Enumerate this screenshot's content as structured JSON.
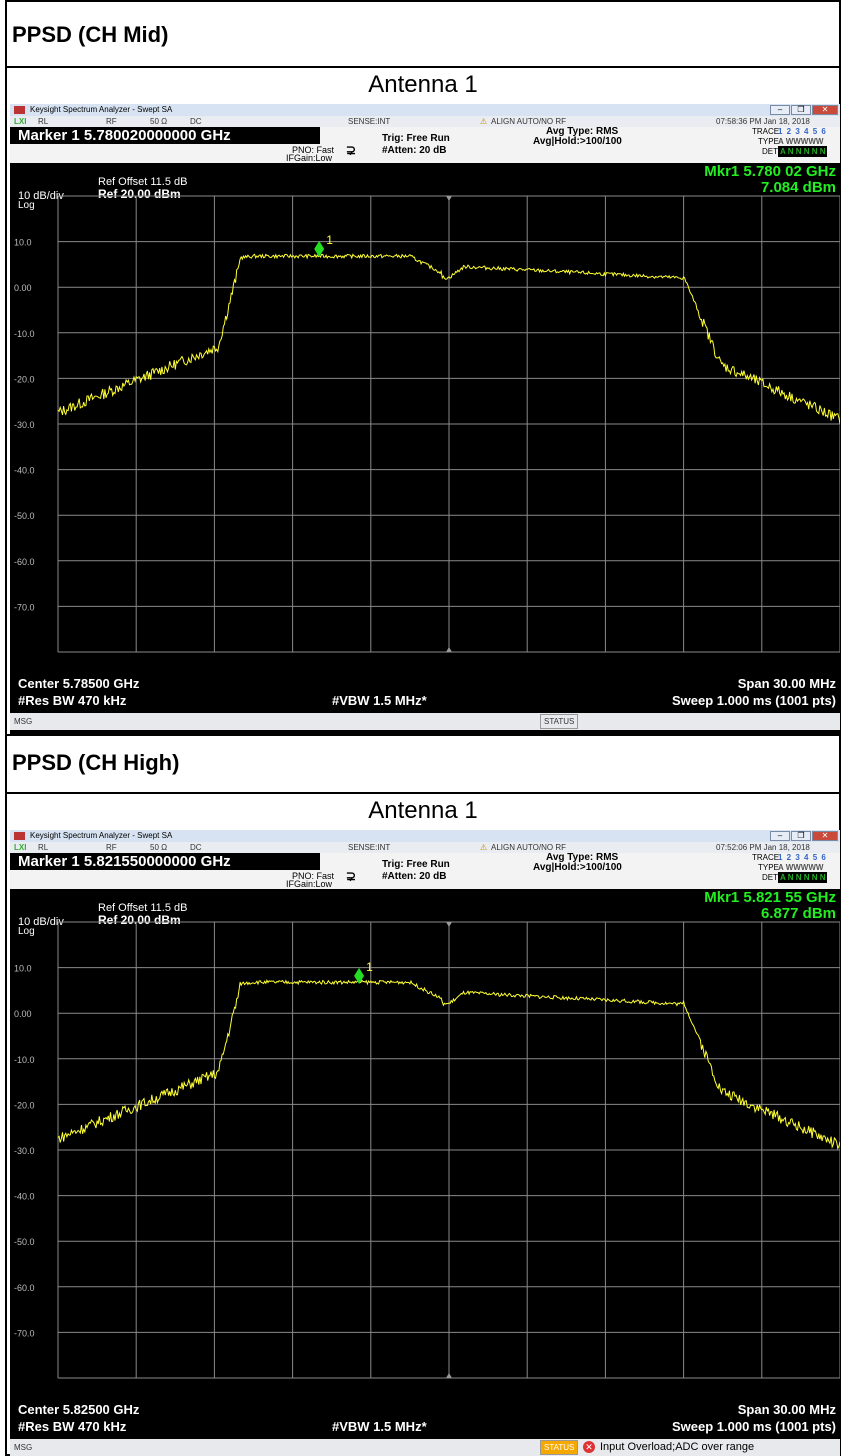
{
  "sections": [
    {
      "title": "PPSD (CH Mid)",
      "antenna": "Antenna 1",
      "analyzer": {
        "window_title": "Keysight Spectrum Analyzer - Swept SA",
        "status": {
          "rl": "RL",
          "rf": "RF",
          "impedance": "50 Ω",
          "dc": "DC",
          "sense": "SENSE:INT",
          "align": "ALIGN AUTO/NO RF",
          "datetime": "07:58:36 PM Jan 18, 2018"
        },
        "marker_line": "Marker 1 5.780020000000 GHz",
        "pno": "PNO: Fast",
        "ifgain": "IFGain:Low",
        "trig": "Trig: Free Run",
        "atten": "#Atten: 20 dB",
        "avg_type": "Avg Type: RMS",
        "avg_hold": "Avg|Hold:>100/100",
        "trace_label": "TRACE",
        "trace_nums": "1 2 3 4 5 6",
        "type_label": "TYPE",
        "type_val": "A WWWWW",
        "det_label": "DET",
        "det_val": "A N N N N N",
        "ref_offset": "Ref Offset 11.5 dB",
        "scale": "10 dB/div",
        "ref_level": "Ref 20.00 dBm",
        "log": "Log",
        "mkr_freq": "Mkr1 5.780 02 GHz",
        "mkr_level": "7.084 dBm",
        "marker_num": "1",
        "center": "Center 5.78500 GHz",
        "span": "Span 30.00 MHz",
        "res_bw": "#Res BW 470 kHz",
        "vbw": "#VBW 1.5 MHz*",
        "sweep": "Sweep  1.000 ms (1001 pts)",
        "msg": "MSG",
        "status_label": "STATUS",
        "status_msg": ""
      }
    },
    {
      "title": "PPSD (CH High)",
      "antenna": "Antenna 1",
      "analyzer": {
        "window_title": "Keysight Spectrum Analyzer - Swept SA",
        "status": {
          "rl": "RL",
          "rf": "RF",
          "impedance": "50 Ω",
          "dc": "DC",
          "sense": "SENSE:INT",
          "align": "ALIGN AUTO/NO RF",
          "datetime": "07:52:06 PM Jan 18, 2018"
        },
        "marker_line": "Marker 1 5.821550000000 GHz",
        "pno": "PNO: Fast",
        "ifgain": "IFGain:Low",
        "trig": "Trig: Free Run",
        "atten": "#Atten: 20 dB",
        "avg_type": "Avg Type: RMS",
        "avg_hold": "Avg|Hold:>100/100",
        "trace_label": "TRACE",
        "trace_nums": "1 2 3 4 5 6",
        "type_label": "TYPE",
        "type_val": "A WWWWW",
        "det_label": "DET",
        "det_val": "A N N N N N",
        "ref_offset": "Ref Offset 11.5 dB",
        "scale": "10 dB/div",
        "ref_level": "Ref 20.00 dBm",
        "log": "Log",
        "mkr_freq": "Mkr1 5.821 55 GHz",
        "mkr_level": "6.877 dBm",
        "marker_num": "1",
        "center": "Center 5.82500 GHz",
        "span": "Span 30.00 MHz",
        "res_bw": "#Res BW 470 kHz",
        "vbw": "#VBW 1.5 MHz*",
        "sweep": "Sweep  1.000 ms (1001 pts)",
        "msg": "MSG",
        "status_label": "STATUS",
        "status_msg": "Input Overload;ADC over range"
      }
    }
  ],
  "y_ticks": [
    "10.0",
    "0.00",
    "-10.0",
    "-20.0",
    "-30.0",
    "-40.0",
    "-50.0",
    "-60.0",
    "-70.0"
  ],
  "colors": {
    "trace": "#ffff33",
    "grid": "#8a8a8a",
    "marker": "#22dd22",
    "mkr_text": "#22ee22",
    "status_warn": "#f5a800"
  }
}
